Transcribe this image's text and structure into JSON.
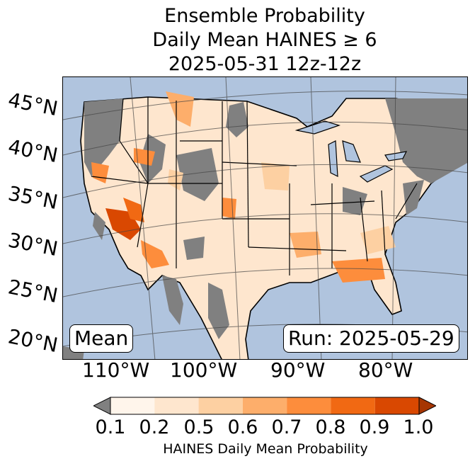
{
  "title": {
    "line1": "Ensemble Probability",
    "line2": "Daily Mean HAINES ≥ 6",
    "line3": "2025-05-31 12z-12z"
  },
  "map": {
    "lat_labels": [
      "45°N",
      "40°N",
      "35°N",
      "30°N",
      "25°N",
      "20°N"
    ],
    "lon_labels": [
      "110°W",
      "100°W",
      "90°W",
      "80°W"
    ],
    "mean_box": "Mean",
    "run_box": "Run: 2025-05-29",
    "colors": {
      "ocean": "#b0c4de",
      "land_missing": "#808080",
      "lakes": "#b0c4de"
    }
  },
  "colorbar": {
    "ticks": [
      "0.1",
      "0.2",
      "0.5",
      "0.6",
      "0.7",
      "0.8",
      "0.9",
      "1.0"
    ],
    "colors": [
      "#fff5eb",
      "#fee6ce",
      "#fdd0a2",
      "#fdae6b",
      "#fd8d3c",
      "#f16913",
      "#d94801"
    ],
    "under_color": "#808080",
    "over_color": "#a63603",
    "label": "HAINES Daily Mean Probability"
  }
}
